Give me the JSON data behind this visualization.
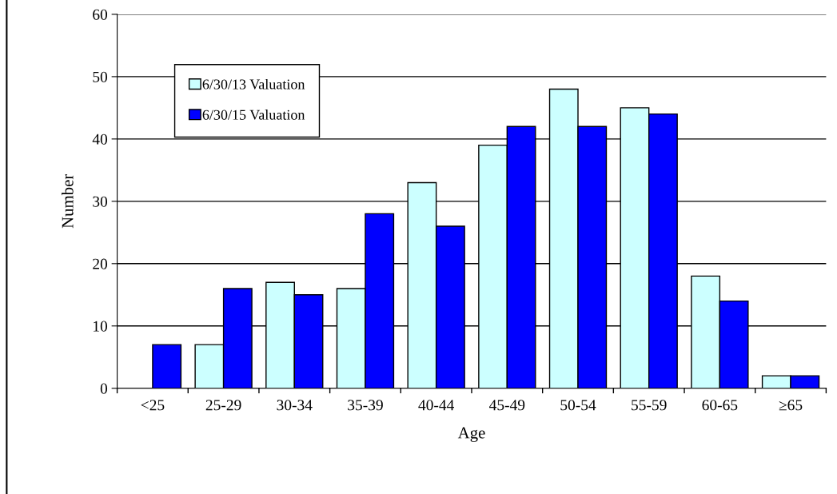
{
  "chart_data": {
    "type": "bar",
    "xlabel": "Age",
    "ylabel": "Number",
    "categories": [
      "<25",
      "25-29",
      "30-34",
      "35-39",
      "40-44",
      "45-49",
      "50-54",
      "55-59",
      "60-65",
      "≥65"
    ],
    "series": [
      {
        "name": "6/30/13 Valuation",
        "color": "#ccffff",
        "values": [
          null,
          7,
          17,
          16,
          33,
          39,
          48,
          45,
          18,
          2
        ]
      },
      {
        "name": "6/30/15 Valuation",
        "color": "#0000ff",
        "values": [
          7,
          16,
          15,
          28,
          26,
          42,
          42,
          44,
          14,
          2
        ]
      }
    ],
    "ylim": [
      0,
      60
    ],
    "yticks": [
      0,
      10,
      20,
      30,
      40,
      50,
      60
    ],
    "grid": "y",
    "legend": "top left"
  }
}
